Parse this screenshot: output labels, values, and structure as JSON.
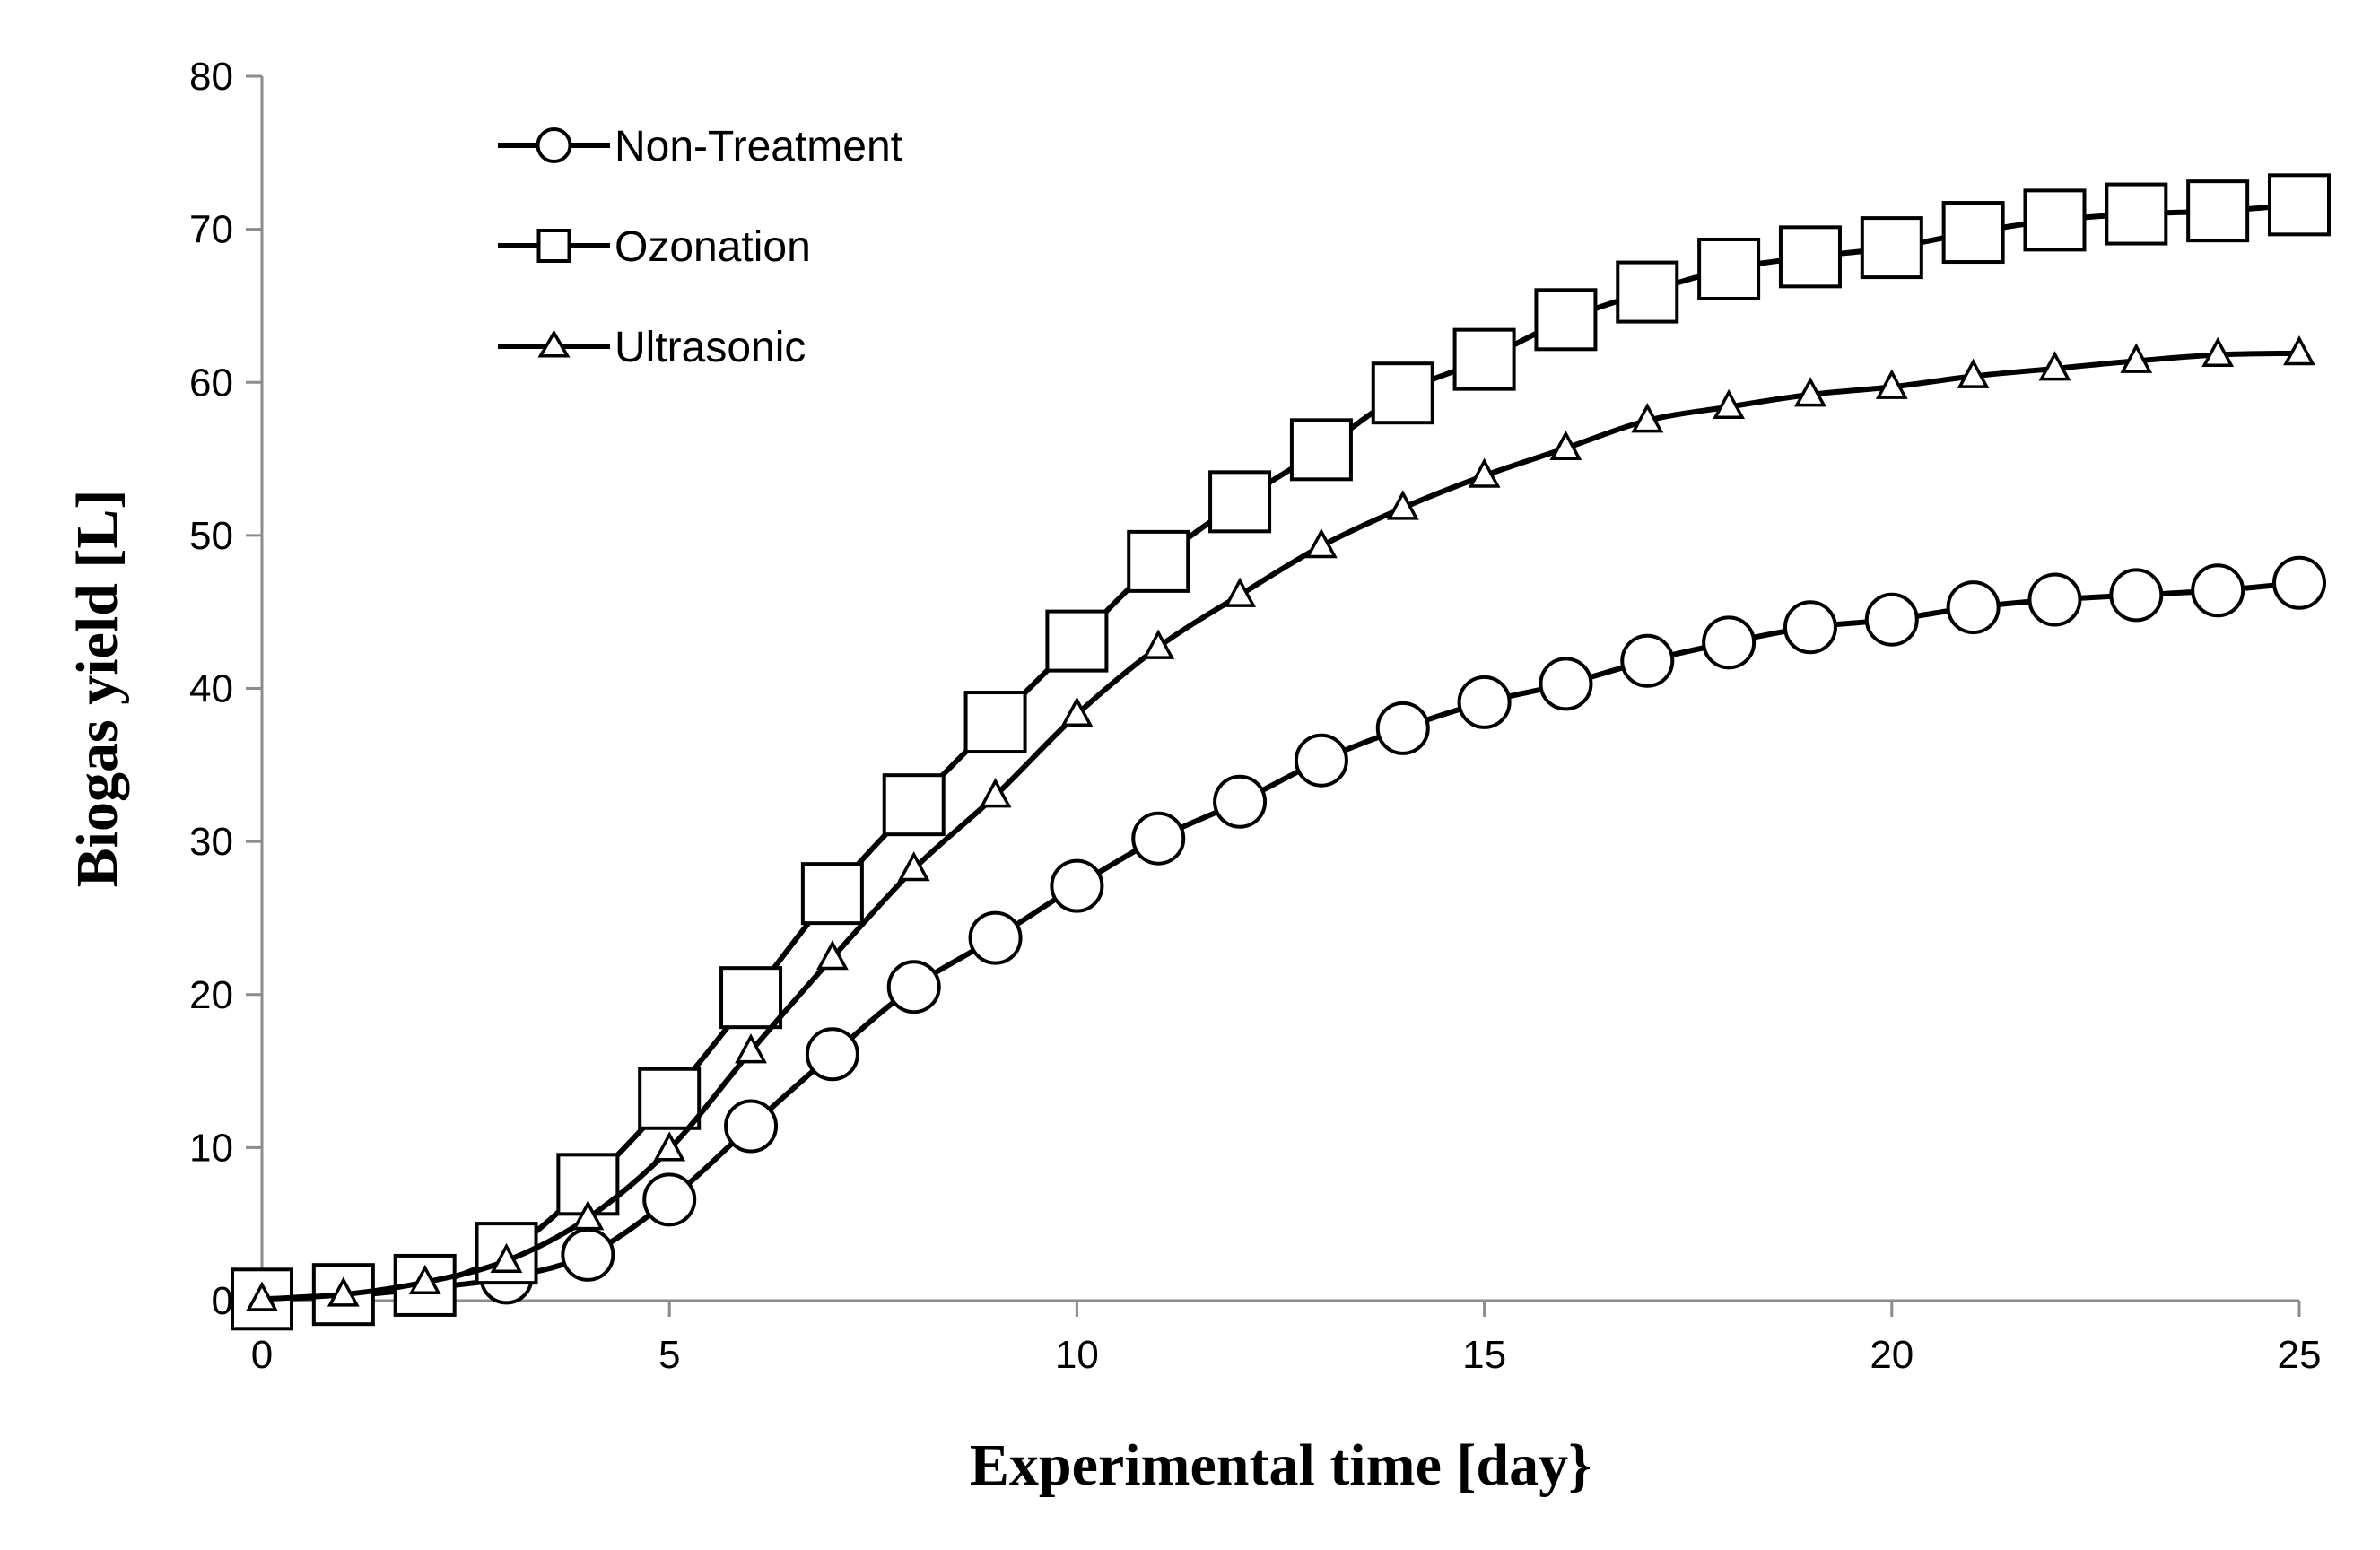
{
  "chart_data": {
    "type": "line",
    "title": "",
    "xlabel": "Experimental time [day}",
    "ylabel": "Biogas yield [L]",
    "xlim": [
      0,
      25
    ],
    "ylim": [
      0,
      80
    ],
    "xticks": [
      0,
      5,
      10,
      15,
      20,
      25
    ],
    "yticks": [
      0,
      10,
      20,
      30,
      40,
      50,
      60,
      70,
      80
    ],
    "grid": false,
    "legend_position": "top-left",
    "x": [
      0,
      1,
      2,
      3,
      4,
      5,
      6,
      7,
      8,
      9,
      10,
      11,
      12,
      13,
      14,
      15,
      16,
      17,
      18,
      19,
      20,
      21,
      22,
      23,
      24,
      25
    ],
    "series": [
      {
        "name": "Non-Treatment",
        "marker": "circle",
        "values": [
          0.1,
          0.3,
          0.8,
          1.5,
          3.0,
          6.6,
          11.4,
          16.1,
          20.5,
          23.7,
          27.1,
          30.2,
          32.6,
          35.3,
          37.4,
          39.1,
          40.3,
          41.8,
          43.0,
          44.0,
          44.5,
          45.3,
          45.8,
          46.1,
          46.4,
          46.9
        ]
      },
      {
        "name": "Ozonation",
        "marker": "square",
        "values": [
          0.1,
          0.4,
          1.0,
          3.1,
          7.6,
          13.2,
          19.8,
          26.6,
          32.4,
          37.8,
          43.1,
          48.3,
          52.2,
          55.6,
          59.3,
          61.5,
          64.1,
          65.9,
          67.4,
          68.2,
          68.8,
          69.8,
          70.6,
          71.0,
          71.2,
          71.6
        ]
      },
      {
        "name": "Ultrasonic",
        "marker": "triangle",
        "values": [
          0.1,
          0.4,
          1.2,
          2.6,
          5.4,
          9.9,
          16.3,
          22.4,
          28.2,
          33.0,
          38.3,
          42.7,
          46.1,
          49.3,
          51.8,
          53.9,
          55.7,
          57.5,
          58.4,
          59.2,
          59.7,
          60.4,
          60.9,
          61.4,
          61.8,
          61.9
        ]
      }
    ]
  }
}
